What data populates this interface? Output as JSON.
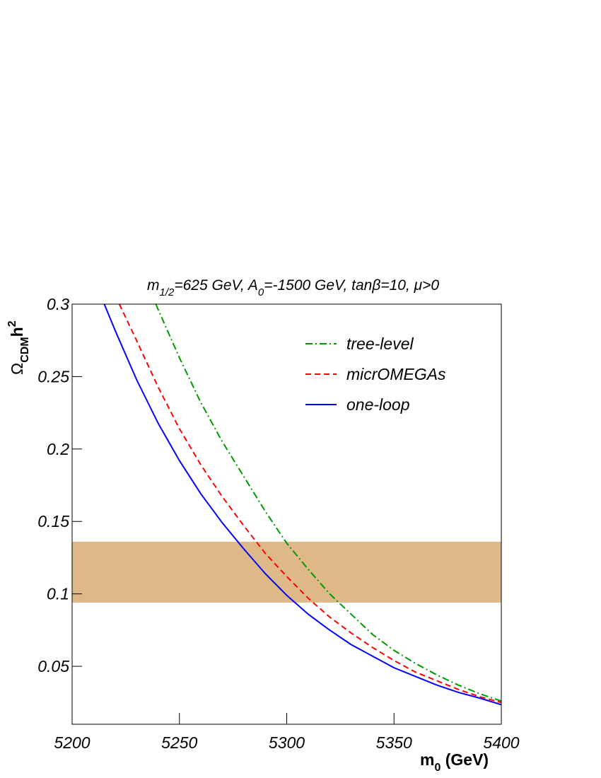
{
  "chart_data": {
    "type": "line",
    "title_parts": [
      "m",
      "1/2",
      "=625 GeV, A",
      "0",
      "=-1500 GeV, tanβ=10, μ>0"
    ],
    "xlabel_parts": [
      "m",
      "0",
      " (GeV)"
    ],
    "ylabel_parts": [
      "Ω",
      "CDM",
      "h",
      "2"
    ],
    "xlim": [
      5200,
      5400
    ],
    "xticks": [
      5200,
      5250,
      5300,
      5350,
      5400
    ],
    "ylim": [
      0.01,
      0.3
    ],
    "yticks": [
      0.05,
      0.1,
      0.15,
      0.2,
      0.25,
      0.3
    ],
    "band": {
      "ymin": 0.094,
      "ymax": 0.136,
      "color": "#deb887"
    },
    "series": [
      {
        "name": "tree-level",
        "color": "#009900",
        "dash": "10,4,2,4",
        "x": [
          5239,
          5250,
          5260,
          5270,
          5280,
          5290,
          5300,
          5310,
          5320,
          5330,
          5340,
          5350,
          5360,
          5370,
          5380,
          5390,
          5400
        ],
        "values": [
          0.3,
          0.263,
          0.232,
          0.205,
          0.181,
          0.157,
          0.135,
          0.117,
          0.1,
          0.086,
          0.072,
          0.061,
          0.052,
          0.044,
          0.037,
          0.031,
          0.026
        ]
      },
      {
        "name": "micrOMEGAs",
        "color": "#ff0000",
        "dash": "8,5",
        "x": [
          5222,
          5230,
          5240,
          5250,
          5260,
          5270,
          5280,
          5290,
          5300,
          5310,
          5320,
          5330,
          5340,
          5350,
          5360,
          5370,
          5380,
          5390,
          5400
        ],
        "values": [
          0.3,
          0.275,
          0.243,
          0.214,
          0.189,
          0.167,
          0.147,
          0.128,
          0.112,
          0.097,
          0.084,
          0.073,
          0.063,
          0.054,
          0.046,
          0.04,
          0.034,
          0.029,
          0.025
        ]
      },
      {
        "name": "one-loop",
        "color": "#0000ff",
        "dash": "none",
        "x": [
          5215,
          5220,
          5230,
          5240,
          5250,
          5260,
          5270,
          5280,
          5290,
          5300,
          5310,
          5320,
          5330,
          5340,
          5350,
          5360,
          5370,
          5380,
          5390,
          5400
        ],
        "values": [
          0.3,
          0.282,
          0.248,
          0.218,
          0.192,
          0.169,
          0.149,
          0.131,
          0.114,
          0.099,
          0.086,
          0.075,
          0.065,
          0.057,
          0.049,
          0.043,
          0.037,
          0.032,
          0.028,
          0.0235
        ]
      }
    ]
  }
}
